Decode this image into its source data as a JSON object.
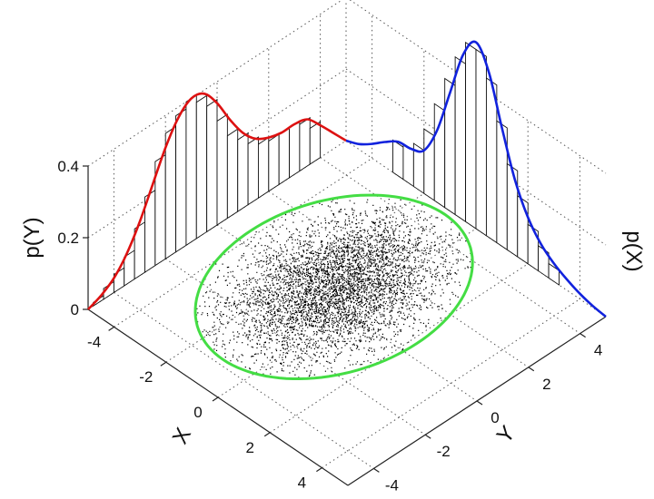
{
  "chart_data": {
    "type": "scatter",
    "title": "",
    "xlabel": "X",
    "ylabel": "Y",
    "zlabel_left": "p(Y)",
    "zlabel_right": "p(X)",
    "x_range": [
      -5,
      5
    ],
    "y_range": [
      -5,
      5
    ],
    "z_range": [
      0,
      0.4
    ],
    "x_ticks": [
      -4,
      -2,
      0,
      2,
      4
    ],
    "y_ticks": [
      -4,
      -2,
      0,
      2,
      4
    ],
    "z_ticks": [
      0,
      0.2,
      0.4
    ],
    "x_tick_labels": [
      "-4",
      "-2",
      "0",
      "2",
      "4"
    ],
    "y_tick_labels": [
      "-4",
      "-2",
      "0",
      "2",
      "4"
    ],
    "z_tick_labels": [
      "0",
      "0.2",
      "0.4"
    ],
    "grid": true,
    "scatter": {
      "color": "#000000",
      "approx_count": 5000,
      "center": [
        -1.0,
        0.5
      ],
      "std": [
        1.2,
        1.8
      ]
    },
    "confidence_ellipse": {
      "color": "#44dd44",
      "center": [
        -1.0,
        0.5
      ],
      "semi_axes": [
        3.2,
        4.3
      ]
    },
    "marginal_pY": {
      "color": "#dd1111",
      "y": [
        -5.0,
        -4.5,
        -4.0,
        -3.5,
        -3.0,
        -2.5,
        -2.0,
        -1.5,
        -1.0,
        -0.5,
        0.0,
        0.5,
        1.0,
        1.5,
        2.0,
        2.5,
        3.0,
        3.5,
        4.0,
        4.5,
        5.0
      ],
      "density": [
        0.0,
        0.015,
        0.04,
        0.085,
        0.15,
        0.23,
        0.31,
        0.37,
        0.4,
        0.39,
        0.34,
        0.27,
        0.21,
        0.17,
        0.15,
        0.14,
        0.14,
        0.13,
        0.09,
        0.045,
        0.0
      ]
    },
    "marginal_pX": {
      "color": "#1122dd",
      "x": [
        -5.0,
        -4.5,
        -4.0,
        -3.5,
        -3.0,
        -2.5,
        -2.0,
        -1.5,
        -1.0,
        -0.5,
        0.0,
        0.5,
        1.0,
        1.5,
        2.0,
        2.5,
        3.0,
        3.5,
        4.0,
        4.5,
        5.0
      ],
      "density": [
        0.0,
        0.015,
        0.04,
        0.07,
        0.095,
        0.1,
        0.12,
        0.2,
        0.33,
        0.46,
        0.52,
        0.46,
        0.33,
        0.21,
        0.13,
        0.08,
        0.05,
        0.03,
        0.015,
        0.005,
        0.0
      ]
    },
    "histogram_pY": {
      "y": [
        -4.6,
        -4.2,
        -3.8,
        -3.4,
        -3.0,
        -2.6,
        -2.2,
        -1.8,
        -1.4,
        -1.0,
        -0.6,
        -0.2,
        0.2,
        0.6,
        1.0,
        1.4,
        1.8,
        2.2,
        2.6,
        3.0,
        3.4,
        3.8
      ],
      "density": [
        0.01,
        0.03,
        0.05,
        0.08,
        0.14,
        0.21,
        0.29,
        0.35,
        0.38,
        0.4,
        0.38,
        0.35,
        0.29,
        0.23,
        0.2,
        0.17,
        0.15,
        0.14,
        0.14,
        0.14,
        0.13,
        0.1
      ]
    },
    "histogram_pX": {
      "x": [
        -4.6,
        -4.2,
        -3.8,
        -3.4,
        -3.0,
        -2.6,
        -2.2,
        -1.8,
        -1.4,
        -1.0,
        -0.6,
        -0.2,
        0.2,
        0.6,
        1.0,
        1.4,
        1.8,
        2.2,
        2.6,
        3.0
      ],
      "density": [
        0.0,
        0.0,
        0.0,
        0.0,
        0.09,
        0.1,
        0.12,
        0.18,
        0.27,
        0.36,
        0.44,
        0.5,
        0.5,
        0.44,
        0.34,
        0.24,
        0.17,
        0.11,
        0.07,
        0.04
      ]
    }
  }
}
